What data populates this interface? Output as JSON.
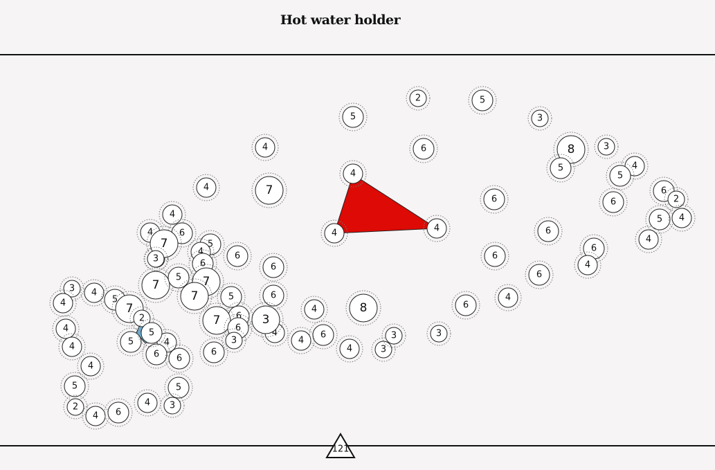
{
  "header": {
    "title": "Hot water holder"
  },
  "footer": {
    "score": "121"
  },
  "colors": {
    "red_triangle": "#dd0a05",
    "blue_pentagon": "#6bafd3",
    "node_fill": "#ffffff",
    "background": "#f6f4f5"
  },
  "nodes": [
    {
      "label": "2"
    },
    {
      "label": "5"
    },
    {
      "label": "5"
    },
    {
      "label": "3"
    },
    {
      "label": "6"
    },
    {
      "label": "4"
    },
    {
      "label": "8"
    },
    {
      "label": "3"
    },
    {
      "label": "5"
    },
    {
      "label": "4"
    },
    {
      "label": "4"
    },
    {
      "label": "7"
    },
    {
      "label": "4"
    },
    {
      "label": "5"
    },
    {
      "label": "6"
    },
    {
      "label": "4"
    },
    {
      "label": "4"
    },
    {
      "label": "6"
    },
    {
      "label": "2"
    },
    {
      "label": "5"
    },
    {
      "label": "4"
    },
    {
      "label": "6"
    },
    {
      "label": "4"
    },
    {
      "label": "4"
    },
    {
      "label": "6"
    },
    {
      "label": "6"
    },
    {
      "label": "4"
    },
    {
      "label": "6"
    },
    {
      "label": "3"
    },
    {
      "label": "7"
    },
    {
      "label": "6"
    },
    {
      "label": "3"
    },
    {
      "label": "5"
    },
    {
      "label": "4"
    },
    {
      "label": "6"
    },
    {
      "label": "6"
    },
    {
      "label": "6"
    },
    {
      "label": "7"
    },
    {
      "label": "5"
    },
    {
      "label": "7"
    },
    {
      "label": "6"
    },
    {
      "label": "6"
    },
    {
      "label": "7"
    },
    {
      "label": "3"
    },
    {
      "label": "4"
    },
    {
      "label": "5"
    },
    {
      "label": "4"
    },
    {
      "label": "7"
    },
    {
      "label": "4"
    },
    {
      "label": "8"
    },
    {
      "label": "5"
    },
    {
      "label": "6"
    },
    {
      "label": "7"
    },
    {
      "label": "6"
    },
    {
      "label": "3"
    },
    {
      "label": "4"
    },
    {
      "label": "2"
    },
    {
      "label": "4"
    },
    {
      "label": "4"
    },
    {
      "label": "4"
    },
    {
      "label": "4"
    },
    {
      "label": "6"
    },
    {
      "label": "5"
    },
    {
      "label": "6"
    },
    {
      "label": "4"
    },
    {
      "label": "3"
    },
    {
      "label": "4"
    },
    {
      "label": "3"
    },
    {
      "label": "6"
    },
    {
      "label": "6"
    },
    {
      "label": "4"
    },
    {
      "label": "6"
    },
    {
      "label": "3"
    },
    {
      "label": "4"
    },
    {
      "label": "5"
    },
    {
      "label": "5"
    },
    {
      "label": "4"
    },
    {
      "label": "3"
    },
    {
      "label": "2"
    },
    {
      "label": "4"
    },
    {
      "label": "6"
    },
    {
      "label": "3"
    },
    {
      "label": "5"
    }
  ]
}
